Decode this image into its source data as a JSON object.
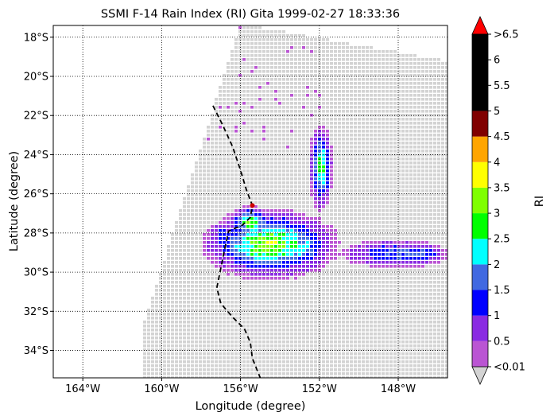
{
  "chart_data": {
    "type": "heatmap",
    "title": "SSMI F-14 Rain Index (RI) Gita 1999-02-27 18:33:36",
    "xlabel": "Longitude (degree)",
    "ylabel": "Latitude (degree)",
    "x_ticks": [
      {
        "value": -164,
        "label": "164°W"
      },
      {
        "value": -160,
        "label": "160°W"
      },
      {
        "value": -156,
        "label": "156°W"
      },
      {
        "value": -152,
        "label": "152°W"
      },
      {
        "value": -148,
        "label": "148°W"
      }
    ],
    "y_ticks": [
      {
        "value": -18,
        "label": "18°S"
      },
      {
        "value": -20,
        "label": "20°S"
      },
      {
        "value": -22,
        "label": "22°S"
      },
      {
        "value": -24,
        "label": "24°S"
      },
      {
        "value": -26,
        "label": "26°S"
      },
      {
        "value": -28,
        "label": "28°S"
      },
      {
        "value": -30,
        "label": "30°S"
      },
      {
        "value": -32,
        "label": "32°S"
      },
      {
        "value": -34,
        "label": "34°S"
      }
    ],
    "xlim": [
      -165.5,
      -145.5
    ],
    "ylim": [
      -35.4,
      -17.4
    ],
    "grid": true,
    "grid_style": "dotted",
    "no_data_color": "#d3d3d3",
    "track": {
      "name": "Gita track",
      "style": "dashed",
      "color": "#000000",
      "points": [
        [
          -157.4,
          -21.5
        ],
        [
          -156.9,
          -22.5
        ],
        [
          -156.4,
          -23.6
        ],
        [
          -156.0,
          -24.8
        ],
        [
          -155.7,
          -25.8
        ],
        [
          -155.4,
          -26.6
        ],
        [
          -155.5,
          -27.2
        ],
        [
          -155.9,
          -27.6
        ],
        [
          -156.6,
          -27.9
        ],
        [
          -156.8,
          -28.8
        ],
        [
          -157.0,
          -29.8
        ],
        [
          -157.2,
          -30.8
        ],
        [
          -157.0,
          -31.6
        ],
        [
          -156.4,
          -32.3
        ],
        [
          -155.8,
          -32.9
        ],
        [
          -155.5,
          -33.6
        ],
        [
          -155.4,
          -34.4
        ],
        [
          -155.0,
          -35.4
        ]
      ]
    },
    "storm_center": {
      "lon": -155.4,
      "lat": -26.6,
      "color": "#cc0000"
    },
    "colorbar": {
      "label": "RI",
      "extend": "both",
      "under_color": "#d3d3d3",
      "over_color": "#ff0000",
      "bins": [
        {
          "low": 0.01,
          "high": 0.5,
          "color": "#ba55d3"
        },
        {
          "low": 0.5,
          "high": 1.0,
          "color": "#8a2be2"
        },
        {
          "low": 1.0,
          "high": 1.5,
          "color": "#0000ff"
        },
        {
          "low": 1.5,
          "high": 2.0,
          "color": "#4169e1"
        },
        {
          "low": 2.0,
          "high": 2.5,
          "color": "#00ffff"
        },
        {
          "low": 2.5,
          "high": 3.0,
          "color": "#00ff00"
        },
        {
          "low": 3.0,
          "high": 3.5,
          "color": "#7fff00"
        },
        {
          "low": 3.5,
          "high": 4.0,
          "color": "#ffff00"
        },
        {
          "low": 4.0,
          "high": 4.5,
          "color": "#ffa500"
        },
        {
          "low": 4.5,
          "high": 5.0,
          "color": "#800000"
        },
        {
          "low": 5.0,
          "high": 6.5,
          "color": "#000000"
        }
      ],
      "tick_labels": [
        "<0.01",
        "0.5",
        "1",
        "1.5",
        "2",
        "2.5",
        "3",
        "3.5",
        "4",
        "4.5",
        "5",
        "5.5",
        "6",
        ">6.5"
      ]
    },
    "rain_features": [
      {
        "name": "main-core",
        "lon": -154.6,
        "lat": -28.5,
        "rlon": 2.3,
        "rlat": 1.2,
        "ri": 3.2
      },
      {
        "name": "core-north",
        "lon": -155.6,
        "lat": -27.4,
        "rlon": 0.7,
        "rlat": 0.6,
        "ri": 3.0
      },
      {
        "name": "core-east",
        "lon": -153.2,
        "lat": -28.6,
        "rlon": 1.2,
        "rlat": 0.9,
        "ri": 2.4
      },
      {
        "name": "north-band",
        "lon": -152.0,
        "lat": -24.6,
        "rlon": 0.4,
        "rlat": 1.5,
        "ri": 2.8
      },
      {
        "name": "east-band",
        "lon": -148.2,
        "lat": -29.0,
        "rlon": 2.2,
        "rlat": 0.55,
        "ri": 1.6
      },
      {
        "name": "east-band-tip",
        "lon": -147.0,
        "lat": -29.0,
        "rlon": 1.0,
        "rlat": 0.4,
        "ri": 1.8
      },
      {
        "name": "west-rim",
        "lon": -157.0,
        "lat": -28.0,
        "rlon": 0.7,
        "rlat": 0.5,
        "ri": 1.2
      }
    ]
  }
}
